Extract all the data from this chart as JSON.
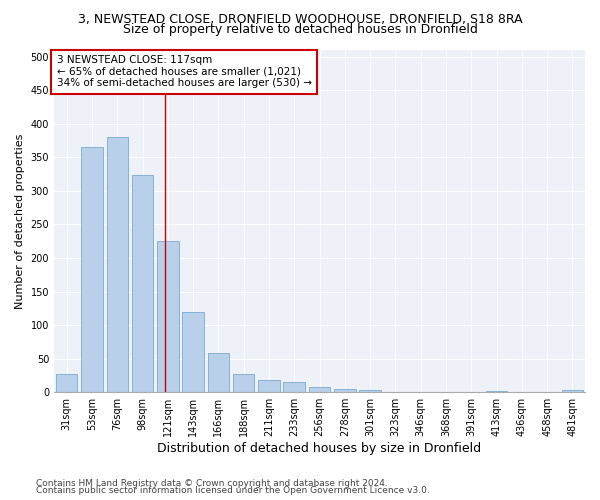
{
  "title_line1": "3, NEWSTEAD CLOSE, DRONFIELD WOODHOUSE, DRONFIELD, S18 8RA",
  "title_line2": "Size of property relative to detached houses in Dronfield",
  "xlabel": "Distribution of detached houses by size in Dronfield",
  "ylabel": "Number of detached properties",
  "footnote1": "Contains HM Land Registry data © Crown copyright and database right 2024.",
  "footnote2": "Contains public sector information licensed under the Open Government Licence v3.0.",
  "categories": [
    "31sqm",
    "53sqm",
    "76sqm",
    "98sqm",
    "121sqm",
    "143sqm",
    "166sqm",
    "188sqm",
    "211sqm",
    "233sqm",
    "256sqm",
    "278sqm",
    "301sqm",
    "323sqm",
    "346sqm",
    "368sqm",
    "391sqm",
    "413sqm",
    "436sqm",
    "458sqm",
    "481sqm"
  ],
  "values": [
    27,
    365,
    380,
    323,
    225,
    120,
    58,
    27,
    18,
    15,
    8,
    5,
    3,
    1,
    1,
    0,
    0,
    2,
    0,
    0,
    3
  ],
  "bar_color": "#b8d0ea",
  "bar_edge_color": "#6aa0cc",
  "property_line_x": 3.88,
  "annotation_text": "3 NEWSTEAD CLOSE: 117sqm\n← 65% of detached houses are smaller (1,021)\n34% of semi-detached houses are larger (530) →",
  "annotation_box_color": "#ffffff",
  "annotation_box_edge_color": "#cc0000",
  "vline_color": "#cc0000",
  "ylim": [
    0,
    510
  ],
  "yticks": [
    0,
    50,
    100,
    150,
    200,
    250,
    300,
    350,
    400,
    450,
    500
  ],
  "bg_color": "#eef2f8",
  "grid_color": "#ffffff",
  "title1_fontsize": 9,
  "title2_fontsize": 9,
  "xlabel_fontsize": 9,
  "ylabel_fontsize": 8,
  "tick_fontsize": 7,
  "annotation_fontsize": 7.5,
  "footnote_fontsize": 6.5
}
